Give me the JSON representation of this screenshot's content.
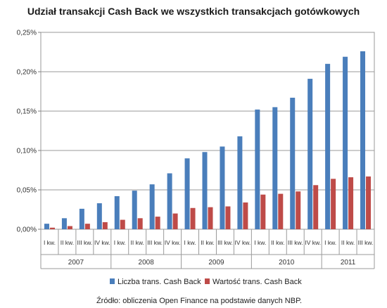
{
  "chart_data": {
    "type": "bar",
    "title": "Udział transakcji Cash Back we wszystkich transakcjach gotówkowych",
    "categories": [
      "I kw.",
      "II kw.",
      "III kw.",
      "IV kw.",
      "I kw.",
      "II kw.",
      "III kw.",
      "IV kw.",
      "I kw.",
      "II kw.",
      "III kw.",
      "IV kw.",
      "I kw.",
      "II kw.",
      "III kw.",
      "IV kw.",
      "I kw.",
      "II kw.",
      "III kw."
    ],
    "groups": [
      {
        "label": "2007",
        "count": 4
      },
      {
        "label": "2008",
        "count": 4
      },
      {
        "label": "2009",
        "count": 4
      },
      {
        "label": "2010",
        "count": 4
      },
      {
        "label": "2011",
        "count": 3
      }
    ],
    "series": [
      {
        "name": "Liczba trans. Cash Back",
        "color": "#4a7ebb",
        "values": [
          0.007,
          0.014,
          0.026,
          0.033,
          0.042,
          0.049,
          0.057,
          0.071,
          0.09,
          0.098,
          0.105,
          0.118,
          0.152,
          0.155,
          0.167,
          0.191,
          0.21,
          0.219,
          0.226
        ]
      },
      {
        "name": "Wartość trans. Cash Back",
        "color": "#be4b48",
        "values": [
          0.002,
          0.004,
          0.007,
          0.009,
          0.012,
          0.014,
          0.016,
          0.02,
          0.027,
          0.028,
          0.029,
          0.034,
          0.044,
          0.045,
          0.048,
          0.056,
          0.064,
          0.066,
          0.067
        ]
      }
    ],
    "ylim": [
      0,
      0.25
    ],
    "yticks": [
      "0,00%",
      "0,05%",
      "0,10%",
      "0,15%",
      "0,20%",
      "0,25%"
    ],
    "grid": true,
    "legend": "bottom"
  },
  "source_note": "Źródło: obliczenia Open Finance na podstawie danych NBP."
}
